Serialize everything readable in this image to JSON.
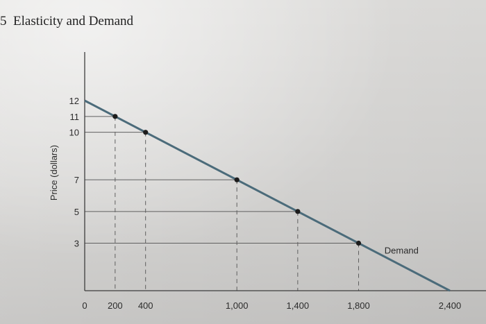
{
  "page": {
    "chapter_mark": "5",
    "title": "Elasticity and Demand"
  },
  "chart_data": {
    "type": "line",
    "xlabel": "",
    "ylabel": "Price (dollars)",
    "xlim": [
      0,
      2400
    ],
    "ylim": [
      0,
      12
    ],
    "x_ticks": [
      {
        "value": 0,
        "label": "0"
      },
      {
        "value": 200,
        "label": "200"
      },
      {
        "value": 400,
        "label": "400"
      },
      {
        "value": 1000,
        "label": "1,000"
      },
      {
        "value": 1400,
        "label": "1,400"
      },
      {
        "value": 1800,
        "label": "1,800"
      },
      {
        "value": 2400,
        "label": "2,400"
      }
    ],
    "y_ticks": [
      {
        "value": 3,
        "label": "3"
      },
      {
        "value": 5,
        "label": "5"
      },
      {
        "value": 7,
        "label": "7"
      },
      {
        "value": 10,
        "label": "10"
      },
      {
        "value": 11,
        "label": "11"
      },
      {
        "value": 12,
        "label": "12"
      }
    ],
    "series": [
      {
        "name": "Demand",
        "x": [
          0,
          2400
        ],
        "y": [
          12,
          0
        ],
        "color": "#4b6b7a"
      }
    ],
    "points": [
      {
        "x": 200,
        "y": 11
      },
      {
        "x": 400,
        "y": 10
      },
      {
        "x": 1000,
        "y": 7
      },
      {
        "x": 1400,
        "y": 5
      },
      {
        "x": 1800,
        "y": 3
      }
    ],
    "colors": {
      "line": "#4b6b7a",
      "grid": "#5f5f5f",
      "axis": "#3c3c3c",
      "point": "#1c1c1c"
    }
  }
}
